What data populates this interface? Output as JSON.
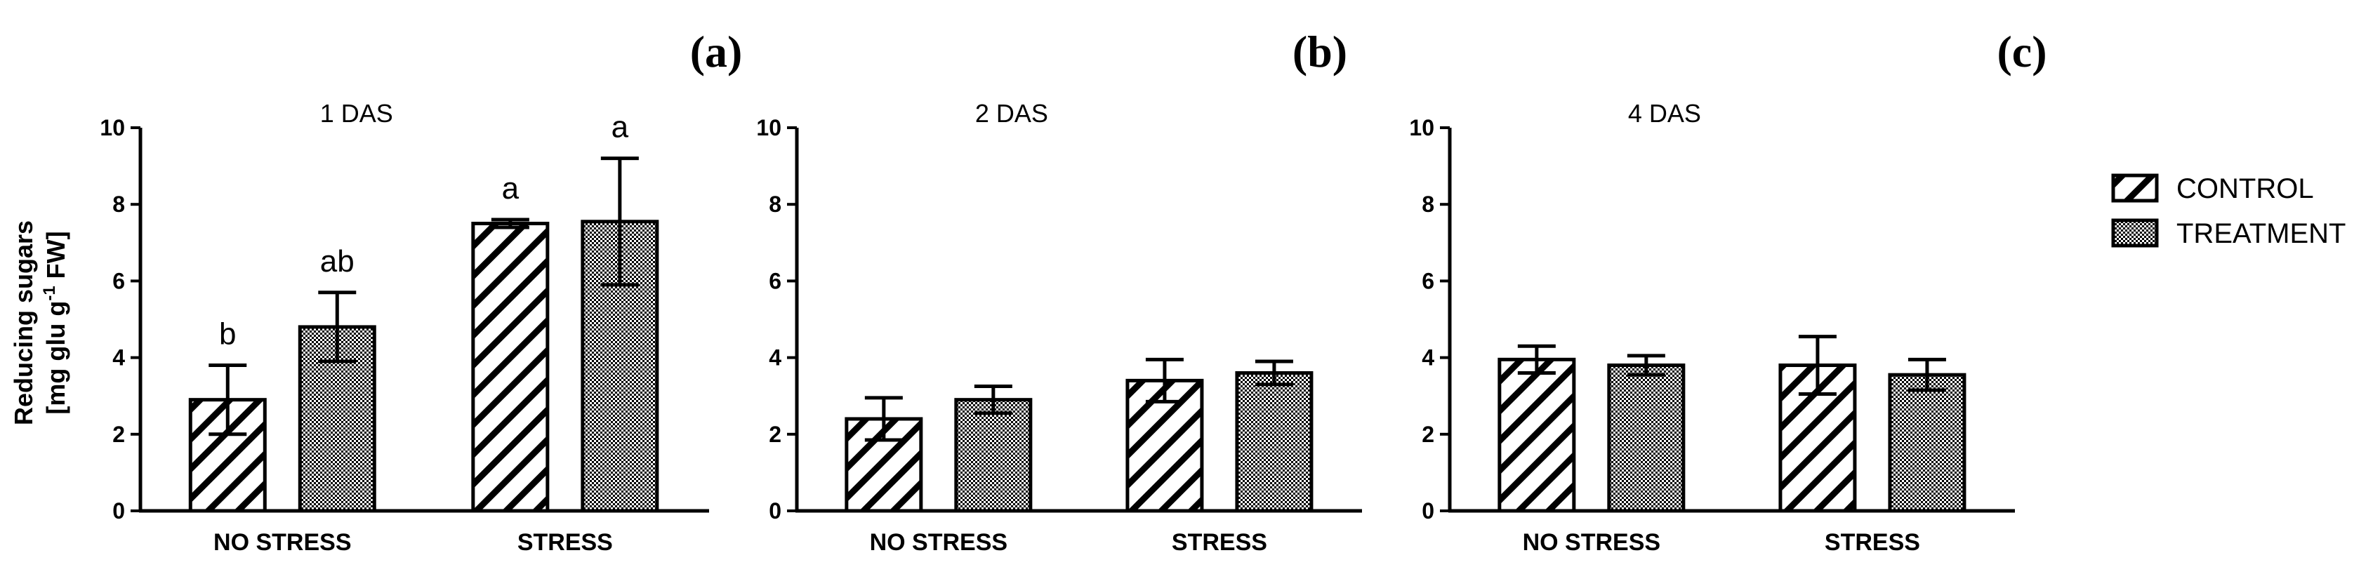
{
  "chart_data": [
    {
      "type": "bar",
      "panel": "(a)",
      "title": "1 DAS",
      "ylabel_line1": "Reducing sugars",
      "ylabel_line2_pre": "[mg glu g",
      "ylabel_line2_sup": "-1",
      "ylabel_line2_post": " FW]",
      "xlabel": "",
      "ylim": [
        0,
        10
      ],
      "yticks": [
        "0",
        "2",
        "4",
        "6",
        "8",
        "10"
      ],
      "categories": [
        "NO STRESS",
        "STRESS"
      ],
      "series": [
        {
          "name": "CONTROL",
          "values": [
            2.9,
            7.5
          ],
          "errors": [
            0.9,
            0.1
          ],
          "letters": [
            "b",
            "a"
          ]
        },
        {
          "name": "TREATMENT",
          "values": [
            4.8,
            7.55
          ],
          "errors": [
            0.9,
            1.65
          ],
          "letters": [
            "ab",
            "a"
          ]
        }
      ]
    },
    {
      "type": "bar",
      "panel": "(b)",
      "title": "2 DAS",
      "ylim": [
        0,
        10
      ],
      "yticks": [
        "0",
        "2",
        "4",
        "6",
        "8",
        "10"
      ],
      "categories": [
        "NO STRESS",
        "STRESS"
      ],
      "series": [
        {
          "name": "CONTROL",
          "values": [
            2.4,
            3.4
          ],
          "errors": [
            0.55,
            0.55
          ],
          "letters": [
            "",
            ""
          ]
        },
        {
          "name": "TREATMENT",
          "values": [
            2.9,
            3.6
          ],
          "errors": [
            0.35,
            0.3
          ],
          "letters": [
            "",
            ""
          ]
        }
      ]
    },
    {
      "type": "bar",
      "panel": "(c)",
      "title": "4 DAS",
      "ylim": [
        0,
        10
      ],
      "yticks": [
        "0",
        "2",
        "4",
        "6",
        "8",
        "10"
      ],
      "categories": [
        "NO STRESS",
        "STRESS"
      ],
      "series": [
        {
          "name": "CONTROL",
          "values": [
            3.95,
            3.8
          ],
          "errors": [
            0.35,
            0.75
          ],
          "letters": [
            "",
            ""
          ]
        },
        {
          "name": "TREATMENT",
          "values": [
            3.8,
            3.55
          ],
          "errors": [
            0.25,
            0.4
          ],
          "letters": [
            "",
            ""
          ]
        }
      ]
    }
  ],
  "legend": {
    "placement": "right",
    "items": [
      {
        "label": "CONTROL",
        "pattern": "diagonal-hatch"
      },
      {
        "label": "TREATMENT",
        "pattern": "checker"
      }
    ]
  },
  "colors": {
    "ink": "#000000",
    "fill": "#ffffff"
  }
}
